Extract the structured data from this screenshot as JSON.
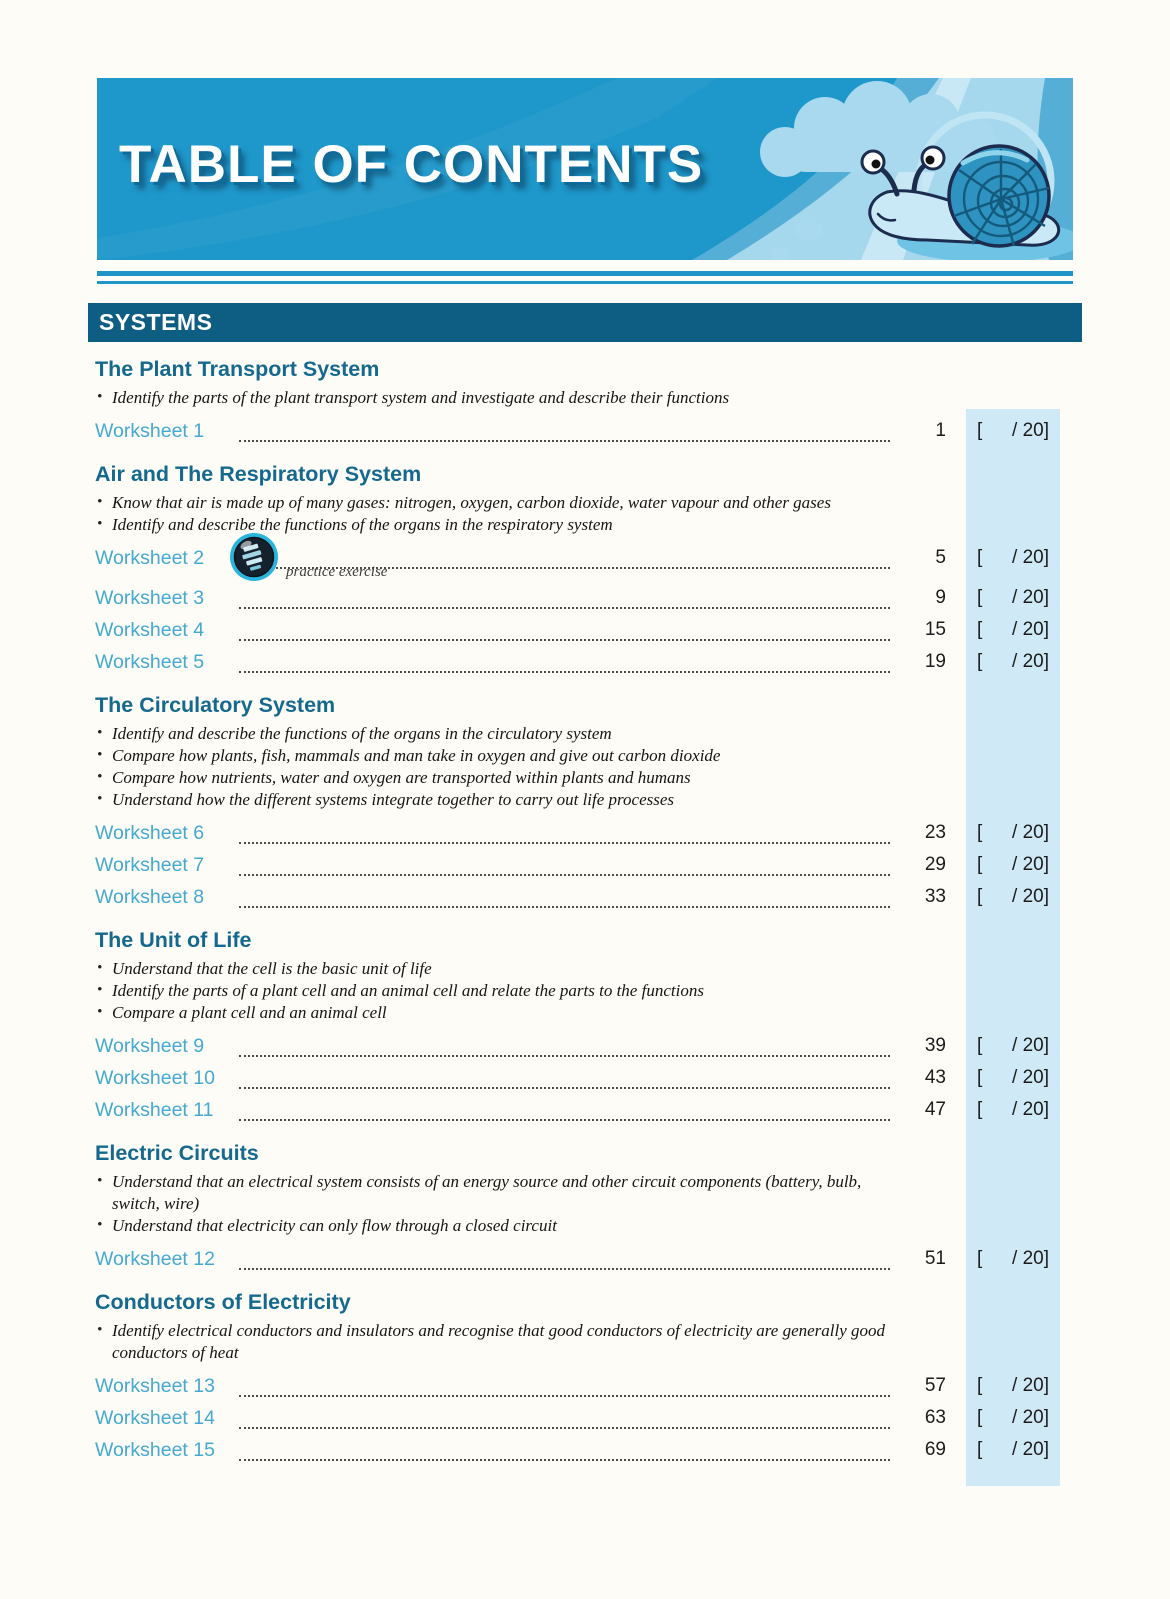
{
  "banner": {
    "title": "TABLE OF CONTENTS"
  },
  "systems_label": "SYSTEMS",
  "practice_caption": "practice exercise",
  "score": {
    "open": "[",
    "close": "/ 20]"
  },
  "colors": {
    "banner_blue": "#1e97ca",
    "bar_teal": "#0e5d83",
    "heading_teal": "#15688e",
    "worksheet_link_blue": "#45a9d1",
    "score_band_blue": "#cfe9f7"
  },
  "sections": [
    {
      "title": "The Plant Transport System",
      "bullets": [
        "Identify the parts of the plant transport system and investigate and describe their functions"
      ],
      "worksheets": [
        {
          "label": "Worksheet 1",
          "page": "1",
          "practice": false
        }
      ]
    },
    {
      "title": "Air and The Respiratory System",
      "bullets": [
        "Know that air is made up of many gases: nitrogen, oxygen, carbon dioxide, water vapour and other gases",
        "Identify and describe the functions of the organs in the respiratory system"
      ],
      "worksheets": [
        {
          "label": "Worksheet 2",
          "page": "5",
          "practice": true
        },
        {
          "label": "Worksheet 3",
          "page": "9",
          "practice": false
        },
        {
          "label": "Worksheet 4",
          "page": "15",
          "practice": false
        },
        {
          "label": "Worksheet 5",
          "page": "19",
          "practice": false
        }
      ]
    },
    {
      "title": "The Circulatory System",
      "bullets": [
        "Identify and describe the functions of the organs in the circulatory system",
        "Compare how plants, fish, mammals and man take in oxygen and give out carbon dioxide",
        "Compare how nutrients, water and oxygen are transported within plants and humans",
        "Understand how the different systems integrate together to carry out life processes"
      ],
      "worksheets": [
        {
          "label": "Worksheet 6",
          "page": "23",
          "practice": false
        },
        {
          "label": "Worksheet 7",
          "page": "29",
          "practice": false
        },
        {
          "label": "Worksheet 8",
          "page": "33",
          "practice": false
        }
      ]
    },
    {
      "title": "The Unit of Life",
      "bullets": [
        "Understand that the cell is the basic unit of life",
        "Identify the parts of a plant cell and an animal cell and relate the parts to the functions",
        "Compare a plant cell and an animal cell"
      ],
      "worksheets": [
        {
          "label": "Worksheet 9",
          "page": "39",
          "practice": false
        },
        {
          "label": "Worksheet 10",
          "page": "43",
          "practice": false
        },
        {
          "label": "Worksheet 11",
          "page": "47",
          "practice": false
        }
      ]
    },
    {
      "title": "Electric Circuits",
      "bullets": [
        "Understand that an electrical system consists of an energy source and other circuit components (battery, bulb, switch, wire)",
        "Understand that electricity can only flow through a closed circuit"
      ],
      "worksheets": [
        {
          "label": "Worksheet 12",
          "page": "51",
          "practice": false
        }
      ]
    },
    {
      "title": "Conductors of Electricity",
      "bullets": [
        "Identify electrical conductors and insulators and recognise that good conductors of electricity are generally good conductors of heat"
      ],
      "worksheets": [
        {
          "label": "Worksheet 13",
          "page": "57",
          "practice": false
        },
        {
          "label": "Worksheet 14",
          "page": "63",
          "practice": false
        },
        {
          "label": "Worksheet 15",
          "page": "69",
          "practice": false
        }
      ]
    }
  ]
}
